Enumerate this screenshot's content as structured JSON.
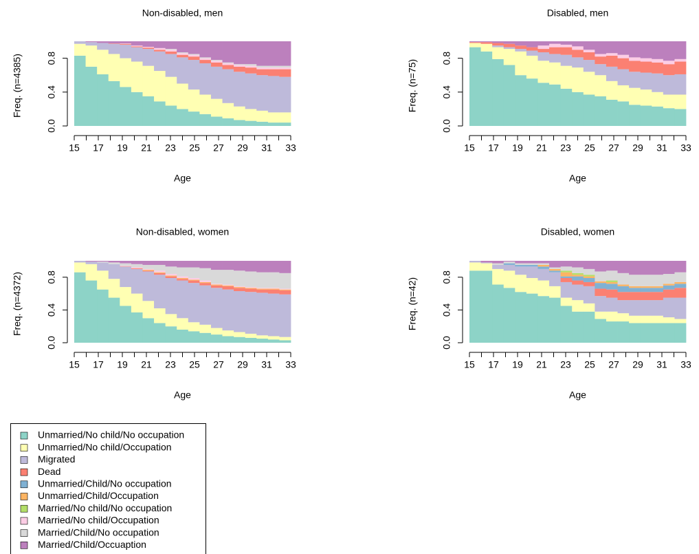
{
  "chart_data": [
    {
      "type": "stacked-step",
      "title": "Non-disabled, men",
      "ylabel": "Freq. (n=4385)",
      "xlabel": "Age",
      "categories": [
        15,
        null,
        17,
        null,
        19,
        null,
        21,
        null,
        23,
        null,
        25,
        null,
        27,
        null,
        29,
        null,
        31,
        null,
        33
      ],
      "ylim": [
        0,
        1
      ],
      "yticks": [
        {
          "value": 0,
          "label": "0.0"
        },
        {
          "value": 0.4,
          "label": "0.4"
        },
        {
          "value": 0.8,
          "label": "0.8"
        }
      ],
      "series": [
        {
          "values": [
            0.83,
            0.7,
            0.61,
            0.53,
            0.46,
            0.4,
            0.35,
            0.29,
            0.24,
            0.2,
            0.17,
            0.14,
            0.11,
            0.09,
            0.07,
            0.06,
            0.05,
            0.04,
            0.04
          ]
        },
        {
          "values": [
            0.14,
            0.25,
            0.29,
            0.32,
            0.34,
            0.36,
            0.36,
            0.36,
            0.34,
            0.3,
            0.26,
            0.23,
            0.21,
            0.18,
            0.16,
            0.14,
            0.13,
            0.12,
            0.12
          ]
        },
        {
          "values": [
            0.03,
            0.04,
            0.08,
            0.12,
            0.16,
            0.17,
            0.2,
            0.23,
            0.27,
            0.31,
            0.35,
            0.37,
            0.38,
            0.4,
            0.41,
            0.42,
            0.42,
            0.43,
            0.42
          ]
        },
        {
          "values": [
            0,
            0,
            0,
            0.005,
            0.01,
            0.01,
            0.015,
            0.02,
            0.03,
            0.03,
            0.04,
            0.04,
            0.05,
            0.05,
            0.06,
            0.07,
            0.07,
            0.08,
            0.09
          ]
        },
        {
          "values": [
            0,
            0,
            0,
            0,
            0,
            0,
            0,
            0,
            0,
            0,
            0,
            0,
            0,
            0,
            0,
            0,
            0,
            0,
            0
          ]
        },
        {
          "values": [
            0,
            0,
            0,
            0,
            0,
            0,
            0,
            0,
            0,
            0,
            0,
            0,
            0,
            0,
            0,
            0,
            0,
            0,
            0
          ]
        },
        {
          "values": [
            0,
            0,
            0,
            0,
            0,
            0,
            0,
            0,
            0,
            0,
            0,
            0,
            0,
            0,
            0,
            0,
            0,
            0,
            0
          ]
        },
        {
          "values": [
            0,
            0,
            0,
            0,
            0.005,
            0.01,
            0.01,
            0.02,
            0.02,
            0.02,
            0.02,
            0.02,
            0.02,
            0.02,
            0.02,
            0.02,
            0.02,
            0.02,
            0.02
          ]
        },
        {
          "values": [
            0,
            0,
            0,
            0,
            0,
            0,
            0,
            0,
            0.01,
            0.01,
            0.01,
            0.01,
            0.01,
            0.01,
            0.01,
            0.02,
            0.02,
            0.02,
            0.02
          ]
        },
        {
          "values": [
            0,
            0.01,
            0.02,
            0.025,
            0.025,
            0.05,
            0.065,
            0.08,
            0.09,
            0.13,
            0.15,
            0.19,
            0.22,
            0.25,
            0.27,
            0.27,
            0.29,
            0.29,
            0.29
          ]
        }
      ]
    },
    {
      "type": "stacked-step",
      "title": "Disabled, men",
      "ylabel": "Freq. (n=75)",
      "xlabel": "Age",
      "categories": [
        15,
        null,
        17,
        null,
        19,
        null,
        21,
        null,
        23,
        null,
        25,
        null,
        27,
        null,
        29,
        null,
        31,
        null,
        33
      ],
      "ylim": [
        0,
        1
      ],
      "yticks": [
        {
          "value": 0,
          "label": "0.0"
        },
        {
          "value": 0.4,
          "label": "0.4"
        },
        {
          "value": 0.8,
          "label": "0.8"
        }
      ],
      "series": [
        {
          "values": [
            0.93,
            0.88,
            0.79,
            0.72,
            0.6,
            0.56,
            0.51,
            0.49,
            0.44,
            0.4,
            0.37,
            0.35,
            0.31,
            0.29,
            0.25,
            0.24,
            0.23,
            0.21,
            0.2
          ]
        },
        {
          "values": [
            0.05,
            0.09,
            0.14,
            0.19,
            0.28,
            0.27,
            0.26,
            0.26,
            0.27,
            0.29,
            0.27,
            0.25,
            0.22,
            0.19,
            0.2,
            0.19,
            0.17,
            0.16,
            0.17
          ]
        },
        {
          "values": [
            0,
            0,
            0.02,
            0.02,
            0.03,
            0.06,
            0.1,
            0.1,
            0.13,
            0.12,
            0.14,
            0.13,
            0.17,
            0.19,
            0.19,
            0.2,
            0.22,
            0.23,
            0.24
          ]
        },
        {
          "values": [
            0.01,
            0.02,
            0.03,
            0.04,
            0.04,
            0.04,
            0.04,
            0.08,
            0.09,
            0.09,
            0.09,
            0.09,
            0.13,
            0.13,
            0.13,
            0.13,
            0.13,
            0.13,
            0.15
          ]
        },
        {
          "values": [
            0,
            0,
            0,
            0,
            0,
            0,
            0,
            0,
            0,
            0,
            0,
            0,
            0,
            0,
            0,
            0,
            0,
            0,
            0
          ]
        },
        {
          "values": [
            0,
            0,
            0,
            0,
            0,
            0,
            0,
            0,
            0,
            0,
            0,
            0,
            0,
            0,
            0,
            0,
            0,
            0,
            0
          ]
        },
        {
          "values": [
            0,
            0,
            0,
            0,
            0,
            0,
            0,
            0,
            0,
            0,
            0,
            0,
            0,
            0,
            0,
            0,
            0,
            0,
            0
          ]
        },
        {
          "values": [
            0,
            0,
            0,
            0,
            0,
            0,
            0.04,
            0.04,
            0.03,
            0.04,
            0.03,
            0.03,
            0.03,
            0.04,
            0.04,
            0.04,
            0.04,
            0.04,
            0.03
          ]
        },
        {
          "values": [
            0,
            0,
            0,
            0,
            0,
            0,
            0,
            0,
            0,
            0,
            0,
            0,
            0,
            0,
            0,
            0,
            0,
            0,
            0
          ]
        },
        {
          "values": [
            0.01,
            0.01,
            0.02,
            0.03,
            0.05,
            0.07,
            0.05,
            0.03,
            0.04,
            0.06,
            0.1,
            0.15,
            0.14,
            0.16,
            0.19,
            0.2,
            0.21,
            0.23,
            0.21
          ]
        }
      ]
    },
    {
      "type": "stacked-step",
      "title": "Non-disabled, women",
      "ylabel": "Freq. (n=4372)",
      "xlabel": "Age",
      "categories": [
        15,
        null,
        17,
        null,
        19,
        null,
        21,
        null,
        23,
        null,
        25,
        null,
        27,
        null,
        29,
        null,
        31,
        null,
        33
      ],
      "ylim": [
        0,
        1
      ],
      "yticks": [
        {
          "value": 0,
          "label": "0.0"
        },
        {
          "value": 0.4,
          "label": "0.4"
        },
        {
          "value": 0.8,
          "label": "0.8"
        }
      ],
      "series": [
        {
          "values": [
            0.86,
            0.76,
            0.65,
            0.55,
            0.45,
            0.37,
            0.3,
            0.24,
            0.2,
            0.16,
            0.14,
            0.12,
            0.1,
            0.08,
            0.07,
            0.06,
            0.05,
            0.04,
            0.03
          ]
        },
        {
          "values": [
            0.12,
            0.2,
            0.23,
            0.23,
            0.23,
            0.23,
            0.21,
            0.18,
            0.15,
            0.14,
            0.11,
            0.1,
            0.08,
            0.07,
            0.06,
            0.05,
            0.04,
            0.04,
            0.04
          ]
        },
        {
          "values": [
            0.02,
            0.03,
            0.1,
            0.18,
            0.25,
            0.3,
            0.36,
            0.41,
            0.44,
            0.46,
            0.48,
            0.48,
            0.49,
            0.5,
            0.5,
            0.51,
            0.52,
            0.52,
            0.52
          ]
        },
        {
          "values": [
            0,
            0,
            0,
            0,
            0.005,
            0.01,
            0.01,
            0.02,
            0.02,
            0.02,
            0.03,
            0.03,
            0.03,
            0.04,
            0.04,
            0.04,
            0.04,
            0.05,
            0.05
          ]
        },
        {
          "values": [
            0,
            0,
            0,
            0,
            0,
            0,
            0,
            0,
            0,
            0,
            0,
            0,
            0,
            0,
            0,
            0,
            0,
            0,
            0
          ]
        },
        {
          "values": [
            0,
            0,
            0,
            0,
            0,
            0,
            0.01,
            0.01,
            0.01,
            0.01,
            0.01,
            0.01,
            0.01,
            0.01,
            0.01,
            0.01,
            0.01,
            0.01,
            0.01
          ]
        },
        {
          "values": [
            0,
            0,
            0,
            0,
            0,
            0,
            0,
            0,
            0,
            0,
            0,
            0,
            0,
            0,
            0,
            0,
            0,
            0,
            0
          ]
        },
        {
          "values": [
            0,
            0,
            0,
            0,
            0.005,
            0.01,
            0.01,
            0.02,
            0.02,
            0.02,
            0.02,
            0.02,
            0.01,
            0.01,
            0.01,
            0.01,
            0.01,
            0.01,
            0.01
          ]
        },
        {
          "values": [
            0,
            0,
            0.01,
            0.02,
            0.03,
            0.04,
            0.05,
            0.07,
            0.09,
            0.11,
            0.13,
            0.15,
            0.17,
            0.18,
            0.19,
            0.19,
            0.19,
            0.19,
            0.19
          ]
        },
        {
          "values": [
            0,
            0.01,
            0.01,
            0.02,
            0.03,
            0.04,
            0.05,
            0.05,
            0.07,
            0.08,
            0.08,
            0.09,
            0.11,
            0.11,
            0.12,
            0.13,
            0.14,
            0.14,
            0.15
          ]
        }
      ]
    },
    {
      "type": "stacked-step",
      "title": "Disabled, women",
      "ylabel": "Freq. (n=42)",
      "xlabel": "Age",
      "categories": [
        15,
        null,
        17,
        null,
        19,
        null,
        21,
        null,
        23,
        null,
        25,
        null,
        27,
        null,
        29,
        null,
        31,
        null,
        33
      ],
      "ylim": [
        0,
        1
      ],
      "yticks": [
        {
          "value": 0,
          "label": "0.0"
        },
        {
          "value": 0.4,
          "label": "0.4"
        },
        {
          "value": 0.8,
          "label": "0.8"
        }
      ],
      "series": [
        {
          "values": [
            0.88,
            0.88,
            0.71,
            0.67,
            0.62,
            0.6,
            0.57,
            0.55,
            0.45,
            0.38,
            0.38,
            0.29,
            0.26,
            0.26,
            0.24,
            0.24,
            0.24,
            0.24,
            0.24
          ]
        },
        {
          "values": [
            0.1,
            0.09,
            0.19,
            0.21,
            0.21,
            0.19,
            0.19,
            0.14,
            0.1,
            0.14,
            0.1,
            0.09,
            0.12,
            0.1,
            0.09,
            0.09,
            0.09,
            0.07,
            0.05
          ]
        },
        {
          "values": [
            0.02,
            0.01,
            0.05,
            0.07,
            0.1,
            0.14,
            0.14,
            0.17,
            0.19,
            0.19,
            0.21,
            0.19,
            0.17,
            0.16,
            0.19,
            0.19,
            0.19,
            0.24,
            0.26
          ]
        },
        {
          "values": [
            0,
            0,
            0,
            0,
            0,
            0,
            0,
            0,
            0.05,
            0.05,
            0.05,
            0.09,
            0.1,
            0.1,
            0.1,
            0.1,
            0.1,
            0.1,
            0.12
          ]
        },
        {
          "values": [
            0,
            0,
            0,
            0.02,
            0.02,
            0.02,
            0.03,
            0.02,
            0.02,
            0.05,
            0.05,
            0.07,
            0.07,
            0.07,
            0.05,
            0.05,
            0.05,
            0.05,
            0.05
          ]
        },
        {
          "values": [
            0,
            0,
            0,
            0,
            0,
            0,
            0.02,
            0.02,
            0.05,
            0.02,
            0.02,
            0.02,
            0.02,
            0.02,
            0.02,
            0.02,
            0.02,
            0.02,
            0.02
          ]
        },
        {
          "values": [
            0,
            0,
            0,
            0,
            0,
            0,
            0,
            0,
            0.02,
            0.02,
            0.02,
            0,
            0.02,
            0,
            0,
            0,
            0,
            0,
            0
          ]
        },
        {
          "values": [
            0,
            0,
            0,
            0,
            0,
            0,
            0,
            0,
            0,
            0,
            0,
            0,
            0,
            0,
            0,
            0,
            0,
            0,
            0
          ]
        },
        {
          "values": [
            0,
            0,
            0.02,
            0.02,
            0.02,
            0.02,
            0.02,
            0.02,
            0.05,
            0.07,
            0.07,
            0.12,
            0.12,
            0.14,
            0.14,
            0.14,
            0.14,
            0.12,
            0.12
          ]
        },
        {
          "values": [
            0,
            0.02,
            0.03,
            0.01,
            0.03,
            0.03,
            0.03,
            0.08,
            0.07,
            0.08,
            0.1,
            0.13,
            0.12,
            0.15,
            0.17,
            0.17,
            0.17,
            0.16,
            0.14
          ]
        }
      ]
    }
  ],
  "legend": {
    "items": [
      {
        "name": "Unmarried/No child/No occupation",
        "color": "#8dd3c7"
      },
      {
        "name": "Unmarried/No child/Occupation",
        "color": "#ffffb3"
      },
      {
        "name": "Migrated",
        "color": "#bebada"
      },
      {
        "name": "Dead",
        "color": "#fb8072"
      },
      {
        "name": "Unmarried/Child/No occupation",
        "color": "#80b1d3"
      },
      {
        "name": "Unmarried/Child/Occupation",
        "color": "#fdb462"
      },
      {
        "name": "Married/No child/No occupation",
        "color": "#b3de69"
      },
      {
        "name": "Married/No child/Occupation",
        "color": "#fccde5"
      },
      {
        "name": "Married/Child/No occupation",
        "color": "#d9d9d9"
      },
      {
        "name": "Married/Child/Occuaption",
        "color": "#bc80bd"
      }
    ]
  }
}
